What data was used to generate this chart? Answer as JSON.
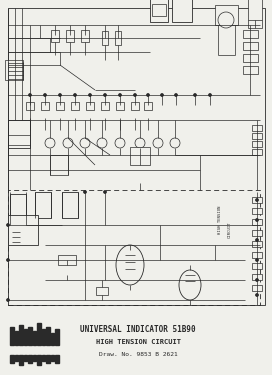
{
  "title_line1": "UNIVERSAL INDICATOR 51B90",
  "title_line2": "HIGH TENSION CIRCUIT",
  "title_line3": "Draw. No. 9853 B 2621",
  "bg_color": "#f0f0eb",
  "line_color": "#2a2a2a",
  "fig_width": 2.72,
  "fig_height": 3.75,
  "dpi": 100
}
